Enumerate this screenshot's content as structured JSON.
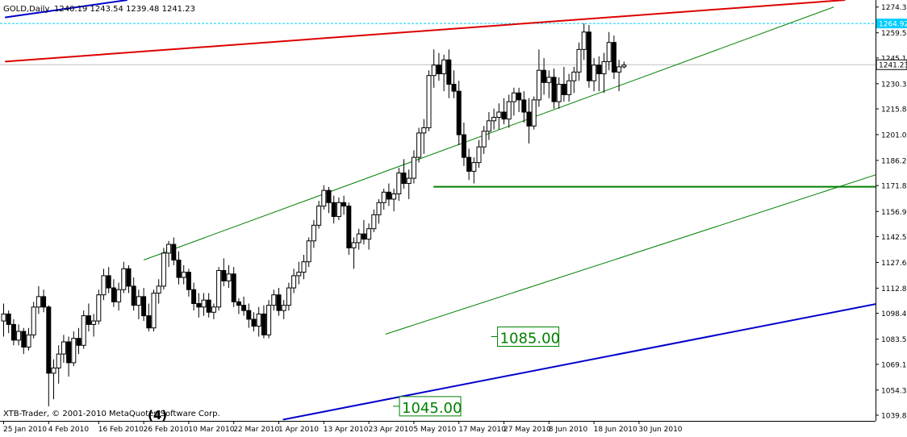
{
  "window": {
    "symbol": "GOLD,Daily",
    "ohlc": "1240.19 1243.54 1239.48 1241.23",
    "copyright": "XTB-Trader, © 2001-2010 MetaQuotes Software Corp.",
    "wave_label": "(4)"
  },
  "colors": {
    "bull": "#ffffff",
    "bear": "#000000",
    "channel": "#008000",
    "support": "#0000cc",
    "resistance": "#dd0000",
    "hline": "#008000",
    "price_line": "#c0c0c0",
    "high_line": "#00ccff",
    "high_label_bg": "#00ccff",
    "price_label_bg": "#ffffff",
    "grid_axis": "#000000"
  },
  "chart_data": {
    "type": "candlestick",
    "title": "GOLD,Daily",
    "ylim": [
      1036.6,
      1278.4
    ],
    "y_ticks": [
      "1274.35",
      "1259.55",
      "1245.10",
      "1230.30",
      "1215.85",
      "1201.05",
      "1186.25",
      "1171.80",
      "1156.90",
      "1142.50",
      "1127.65",
      "1112.85",
      "1098.40",
      "1083.55",
      "1069.10",
      "1054.30",
      "1039.85"
    ],
    "x_ticks": [
      {
        "index": 0,
        "label": "25 Jan 2010"
      },
      {
        "index": 9,
        "label": "4 Feb 2010"
      },
      {
        "index": 19,
        "label": "16 Feb 2010"
      },
      {
        "index": 28,
        "label": "26 Feb 2010"
      },
      {
        "index": 37,
        "label": "10 Mar 2010"
      },
      {
        "index": 46,
        "label": "22 Mar 2010"
      },
      {
        "index": 55,
        "label": "1 Apr 2010"
      },
      {
        "index": 64,
        "label": "13 Apr 2010"
      },
      {
        "index": 73,
        "label": "23 Apr 2010"
      },
      {
        "index": 82,
        "label": "5 May 2010"
      },
      {
        "index": 91,
        "label": "17 May 2010"
      },
      {
        "index": 100,
        "label": "27 May 2010"
      },
      {
        "index": 109,
        "label": "8 Jun 2010"
      },
      {
        "index": 118,
        "label": "18 Jun 2010"
      },
      {
        "index": 127,
        "label": "30 Jun 2010"
      }
    ],
    "candles": [
      [
        1094,
        1104,
        1085,
        1098
      ],
      [
        1098,
        1100,
        1087,
        1092
      ],
      [
        1092,
        1095,
        1080,
        1083
      ],
      [
        1083,
        1092,
        1080,
        1088
      ],
      [
        1088,
        1090,
        1075,
        1079
      ],
      [
        1079,
        1090,
        1077,
        1086
      ],
      [
        1086,
        1105,
        1084,
        1102
      ],
      [
        1102,
        1114,
        1098,
        1108
      ],
      [
        1108,
        1112,
        1099,
        1102
      ],
      [
        1102,
        1103,
        1045,
        1064
      ],
      [
        1064,
        1072,
        1049,
        1067
      ],
      [
        1067,
        1080,
        1058,
        1075
      ],
      [
        1075,
        1086,
        1070,
        1082
      ],
      [
        1082,
        1085,
        1062,
        1070
      ],
      [
        1070,
        1088,
        1068,
        1084
      ],
      [
        1084,
        1090,
        1075,
        1080
      ],
      [
        1080,
        1100,
        1078,
        1097
      ],
      [
        1097,
        1104,
        1088,
        1092
      ],
      [
        1092,
        1098,
        1085,
        1094
      ],
      [
        1094,
        1112,
        1092,
        1109
      ],
      [
        1109,
        1124,
        1106,
        1120
      ],
      [
        1120,
        1125,
        1110,
        1113
      ],
      [
        1113,
        1118,
        1102,
        1105
      ],
      [
        1105,
        1116,
        1100,
        1112
      ],
      [
        1112,
        1128,
        1110,
        1124
      ],
      [
        1124,
        1126,
        1110,
        1114
      ],
      [
        1114,
        1119,
        1100,
        1103
      ],
      [
        1103,
        1112,
        1095,
        1108
      ],
      [
        1108,
        1113,
        1094,
        1097
      ],
      [
        1097,
        1104,
        1088,
        1090
      ],
      [
        1090,
        1112,
        1088,
        1110
      ],
      [
        1110,
        1118,
        1104,
        1114
      ],
      [
        1114,
        1136,
        1112,
        1133
      ],
      [
        1133,
        1140,
        1125,
        1138
      ],
      [
        1138,
        1142,
        1126,
        1129
      ],
      [
        1129,
        1134,
        1115,
        1119
      ],
      [
        1119,
        1126,
        1115,
        1122
      ],
      [
        1122,
        1124,
        1108,
        1112
      ],
      [
        1112,
        1116,
        1100,
        1104
      ],
      [
        1104,
        1110,
        1096,
        1102
      ],
      [
        1102,
        1110,
        1097,
        1106
      ],
      [
        1106,
        1110,
        1096,
        1099
      ],
      [
        1099,
        1104,
        1095,
        1102
      ],
      [
        1102,
        1125,
        1100,
        1123
      ],
      [
        1123,
        1130,
        1114,
        1117
      ],
      [
        1117,
        1126,
        1113,
        1121
      ],
      [
        1121,
        1125,
        1102,
        1105
      ],
      [
        1105,
        1107,
        1098,
        1103
      ],
      [
        1103,
        1108,
        1097,
        1100
      ],
      [
        1100,
        1104,
        1090,
        1095
      ],
      [
        1095,
        1099,
        1088,
        1091
      ],
      [
        1091,
        1102,
        1085,
        1098
      ],
      [
        1098,
        1103,
        1084,
        1086
      ],
      [
        1086,
        1106,
        1084,
        1103
      ],
      [
        1103,
        1112,
        1100,
        1109
      ],
      [
        1109,
        1113,
        1097,
        1100
      ],
      [
        1100,
        1106,
        1095,
        1103
      ],
      [
        1103,
        1116,
        1100,
        1113
      ],
      [
        1113,
        1124,
        1110,
        1120
      ],
      [
        1120,
        1128,
        1115,
        1122
      ],
      [
        1122,
        1132,
        1118,
        1128
      ],
      [
        1128,
        1142,
        1125,
        1140
      ],
      [
        1140,
        1152,
        1136,
        1149
      ],
      [
        1149,
        1163,
        1147,
        1160
      ],
      [
        1160,
        1172,
        1158,
        1169
      ],
      [
        1169,
        1171,
        1156,
        1162
      ],
      [
        1162,
        1166,
        1150,
        1154
      ],
      [
        1154,
        1165,
        1152,
        1162
      ],
      [
        1162,
        1166,
        1155,
        1160
      ],
      [
        1160,
        1162,
        1132,
        1136
      ],
      [
        1136,
        1142,
        1124,
        1139
      ],
      [
        1139,
        1147,
        1135,
        1144
      ],
      [
        1144,
        1152,
        1138,
        1141
      ],
      [
        1141,
        1150,
        1135,
        1147
      ],
      [
        1147,
        1158,
        1145,
        1155
      ],
      [
        1155,
        1164,
        1150,
        1162
      ],
      [
        1162,
        1170,
        1158,
        1168
      ],
      [
        1168,
        1173,
        1160,
        1164
      ],
      [
        1164,
        1170,
        1157,
        1167
      ],
      [
        1167,
        1182,
        1163,
        1179
      ],
      [
        1179,
        1187,
        1170,
        1173
      ],
      [
        1173,
        1181,
        1164,
        1176
      ],
      [
        1176,
        1192,
        1173,
        1188
      ],
      [
        1188,
        1205,
        1185,
        1202
      ],
      [
        1202,
        1210,
        1190,
        1205
      ],
      [
        1205,
        1238,
        1203,
        1235
      ],
      [
        1235,
        1250,
        1228,
        1241
      ],
      [
        1241,
        1248,
        1232,
        1236
      ],
      [
        1236,
        1247,
        1226,
        1244
      ],
      [
        1244,
        1250,
        1222,
        1230
      ],
      [
        1230,
        1238,
        1222,
        1226
      ],
      [
        1226,
        1232,
        1195,
        1201
      ],
      [
        1201,
        1208,
        1183,
        1188
      ],
      [
        1188,
        1193,
        1175,
        1180
      ],
      [
        1180,
        1188,
        1173,
        1185
      ],
      [
        1185,
        1198,
        1182,
        1194
      ],
      [
        1194,
        1206,
        1190,
        1203
      ],
      [
        1203,
        1214,
        1198,
        1209
      ],
      [
        1209,
        1216,
        1204,
        1211
      ],
      [
        1211,
        1219,
        1204,
        1214
      ],
      [
        1214,
        1222,
        1207,
        1210
      ],
      [
        1210,
        1224,
        1205,
        1220
      ],
      [
        1220,
        1228,
        1212,
        1225
      ],
      [
        1225,
        1228,
        1214,
        1221
      ],
      [
        1221,
        1226,
        1208,
        1214
      ],
      [
        1214,
        1222,
        1196,
        1206
      ],
      [
        1206,
        1223,
        1204,
        1221
      ],
      [
        1221,
        1250,
        1217,
        1238
      ],
      [
        1238,
        1245,
        1224,
        1231
      ],
      [
        1231,
        1238,
        1222,
        1234
      ],
      [
        1234,
        1239,
        1216,
        1220
      ],
      [
        1220,
        1234,
        1216,
        1230
      ],
      [
        1230,
        1240,
        1220,
        1224
      ],
      [
        1224,
        1236,
        1220,
        1232
      ],
      [
        1232,
        1240,
        1225,
        1237
      ],
      [
        1237,
        1254,
        1232,
        1250
      ],
      [
        1250,
        1265,
        1244,
        1260
      ],
      [
        1260,
        1264,
        1228,
        1232
      ],
      [
        1232,
        1245,
        1226,
        1241
      ],
      [
        1241,
        1246,
        1226,
        1236
      ],
      [
        1236,
        1248,
        1225,
        1243
      ],
      [
        1243,
        1260,
        1238,
        1254
      ],
      [
        1254,
        1258,
        1233,
        1237
      ],
      [
        1237,
        1244,
        1226,
        1240
      ],
      [
        1240,
        1243,
        1239,
        1241
      ]
    ],
    "trendlines": [
      {
        "name": "channel-upper",
        "color": "#008000",
        "width": 1,
        "p1": [
          28.07,
          1129.0
        ],
        "p2": [
          166,
          1274.35
        ]
      },
      {
        "name": "channel-lower",
        "color": "#008000",
        "width": 1,
        "p1": [
          76.4,
          1086.4
        ],
        "p2": [
          250.9,
          1249.5
        ]
      },
      {
        "name": "support",
        "color": "#0000cc",
        "width": 2,
        "p1": [
          55.9,
          1037.3
        ],
        "p2": [
          261.2,
          1152.4
        ]
      },
      {
        "name": "resistance",
        "color": "#dd0000",
        "width": 2,
        "p1": [
          0.35,
          1243.0
        ],
        "p2": [
          168.3,
          1278.4
        ]
      },
      {
        "name": "support-upper-segment",
        "color": "#0000cc",
        "width": 2,
        "p1": [
          0.35,
          1268.4
        ],
        "p2": [
          24.8,
          1278.4
        ]
      }
    ],
    "hline": {
      "value": 1171.1,
      "from_index": 86,
      "to_index": 240
    },
    "high_line": {
      "value": 1264.92,
      "label": "1264.92"
    },
    "price_line": {
      "value": 1241.23,
      "label": "1241.23"
    },
    "annotations": [
      {
        "label": "1085.00",
        "index": 98.8,
        "value": 1085.0
      },
      {
        "label": "1045.00",
        "index": 79.2,
        "value": 1045.0
      }
    ]
  }
}
